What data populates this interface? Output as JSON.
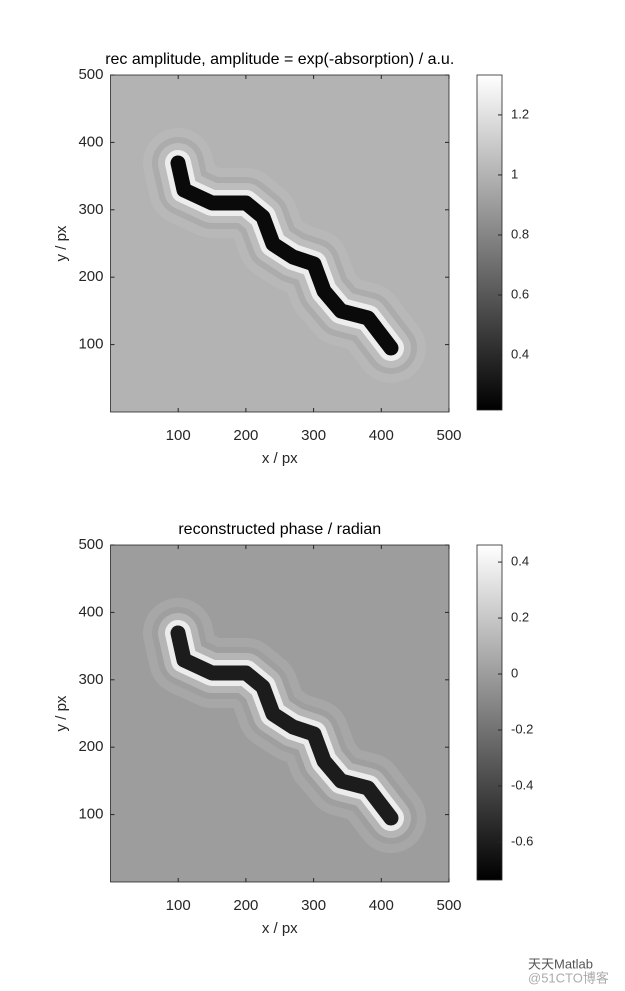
{
  "chart_data": [
    {
      "type": "image",
      "title": "rec amplitude, amplitude = exp(-absorption) / a.u.",
      "xlabel": "x / px",
      "ylabel": "y / px",
      "xlim": [
        0,
        500
      ],
      "ylim": [
        0,
        500
      ],
      "xticks": [
        100,
        200,
        300,
        400,
        500
      ],
      "yticks": [
        100,
        200,
        300,
        400,
        500
      ],
      "colormap": "gray",
      "clim": [
        0.217,
        1.333
      ],
      "cticks": [
        0.4,
        0.6,
        0.8,
        1,
        1.2
      ]
    },
    {
      "type": "image",
      "title": "reconstructed phase / radian",
      "xlabel": "x / px",
      "ylabel": "y / px",
      "xlim": [
        0,
        500
      ],
      "ylim": [
        0,
        500
      ],
      "xticks": [
        100,
        200,
        300,
        400,
        500
      ],
      "yticks": [
        100,
        200,
        300,
        400,
        500
      ],
      "colormap": "gray",
      "clim": [
        -0.736,
        0.461
      ],
      "cticks": [
        -0.6,
        -0.4,
        -0.2,
        0,
        0.2,
        0.4
      ]
    }
  ],
  "watermark": {
    "brand": "天天Matlab",
    "source": "@51CTO博客"
  }
}
